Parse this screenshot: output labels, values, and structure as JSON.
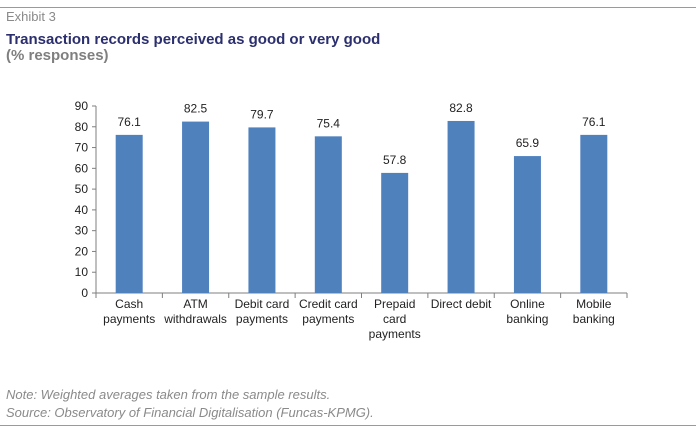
{
  "header": {
    "exhibit": "Exhibit 3",
    "title": "Transaction records perceived as good or very good",
    "subtitle": "(% responses)"
  },
  "footer": {
    "note": "Note: Weighted averages taken from the sample results.",
    "source": "Source: Observatory of Financial Digitalisation (Funcas-KPMG)."
  },
  "colors": {
    "bar": "#4f81bd",
    "title": "#2b2f6e",
    "rule": "#9a9a9a"
  },
  "chart_data": {
    "type": "bar",
    "categories": [
      [
        "Cash",
        "payments"
      ],
      [
        "ATM",
        "withdrawals"
      ],
      [
        "Debit card",
        "payments"
      ],
      [
        "Credit card",
        "payments"
      ],
      [
        "Prepaid",
        "card",
        "payments"
      ],
      [
        "Direct debit"
      ],
      [
        "Online",
        "banking"
      ],
      [
        "Mobile",
        "banking"
      ]
    ],
    "values": [
      76.1,
      82.5,
      79.7,
      75.4,
      57.8,
      82.8,
      65.9,
      76.1
    ],
    "data_labels": [
      "76.1",
      "82.5",
      "79.7",
      "75.4",
      "57.8",
      "82.8",
      "65.9",
      "76.1"
    ],
    "ylim": [
      0,
      90
    ],
    "yticks": [
      0,
      10,
      20,
      30,
      40,
      50,
      60,
      70,
      80,
      90
    ],
    "grid": false,
    "legend": "none"
  }
}
